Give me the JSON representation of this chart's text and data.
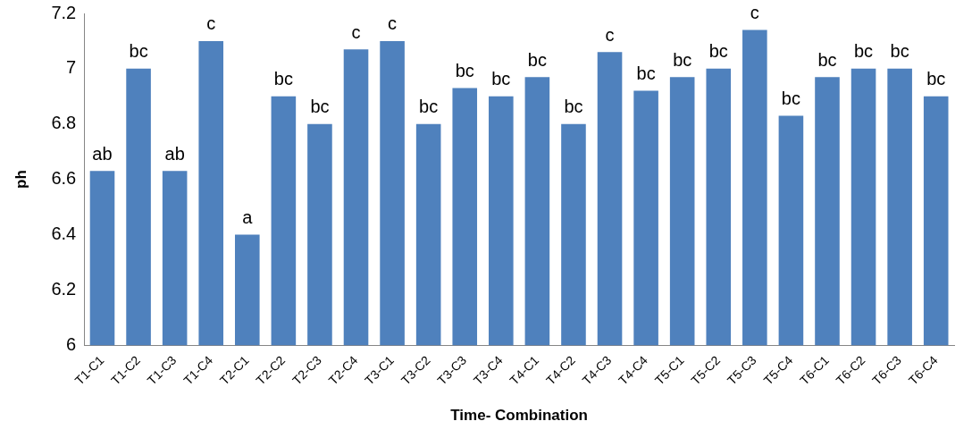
{
  "chart_data": {
    "type": "bar",
    "xlabel": "Time- Combination",
    "ylabel": "ph",
    "categories": [
      "T1-C1",
      "T1-C2",
      "T1-C3",
      "T1-C4",
      "T2-C1",
      "T2-C2",
      "T2-C3",
      "T2-C4",
      "T3-C1",
      "T3-C2",
      "T3-C3",
      "T3-C4",
      "T4-C1",
      "T4-C2",
      "T4-C3",
      "T4-C4",
      "T5-C1",
      "T5-C2",
      "T5-C3",
      "T5-C4",
      "T6-C1",
      "T6-C2",
      "T6-C3",
      "T6-C4"
    ],
    "values": [
      6.63,
      7.0,
      6.63,
      7.1,
      6.4,
      6.9,
      6.8,
      7.07,
      7.1,
      6.8,
      6.93,
      6.9,
      6.97,
      6.8,
      7.06,
      6.92,
      6.97,
      7.0,
      7.14,
      6.83,
      6.97,
      7.0,
      7.0,
      6.9
    ],
    "color": "#4f81bd",
    "ylim": [
      6,
      7.2
    ],
    "yticks": [
      6,
      6.2,
      6.4,
      6.6,
      6.8,
      7,
      7.2
    ],
    "grid": false,
    "legend": false,
    "annotations": [
      {
        "text": "ab",
        "x": "T1-C1",
        "y": 6.63
      },
      {
        "text": "bc",
        "x": "T1-C2",
        "y": 7.0
      },
      {
        "text": "ab",
        "x": "T1-C3",
        "y": 6.63
      },
      {
        "text": "c",
        "x": "T1-C4",
        "y": 7.1
      },
      {
        "text": "a",
        "x": "T2-C1",
        "y": 6.4
      },
      {
        "text": "bc",
        "x": "T2-C2",
        "y": 6.9
      },
      {
        "text": "bc",
        "x": "T2-C3",
        "y": 6.8
      },
      {
        "text": "c",
        "x": "T2-C4",
        "y": 7.07
      },
      {
        "text": "c",
        "x": "T3-C1",
        "y": 7.1
      },
      {
        "text": "bc",
        "x": "T3-C2",
        "y": 6.8
      },
      {
        "text": "bc",
        "x": "T3-C3",
        "y": 6.93
      },
      {
        "text": "bc",
        "x": "T3-C4",
        "y": 6.9
      },
      {
        "text": "bc",
        "x": "T4-C1",
        "y": 6.97
      },
      {
        "text": "bc",
        "x": "T4-C2",
        "y": 6.8
      },
      {
        "text": "c",
        "x": "T4-C3",
        "y": 7.06
      },
      {
        "text": "bc",
        "x": "T4-C4",
        "y": 6.92
      },
      {
        "text": "bc",
        "x": "T5-C1",
        "y": 6.97
      },
      {
        "text": "bc",
        "x": "T5-C2",
        "y": 7.0
      },
      {
        "text": "c",
        "x": "T5-C3",
        "y": 7.14
      },
      {
        "text": "bc",
        "x": "T5-C4",
        "y": 6.83
      },
      {
        "text": "bc",
        "x": "T6-C1",
        "y": 6.97
      },
      {
        "text": "bc",
        "x": "T6-C2",
        "y": 7.0
      },
      {
        "text": "bc",
        "x": "T6-C3",
        "y": 7.0
      },
      {
        "text": "bc",
        "x": "T6-C4",
        "y": 6.9
      }
    ]
  }
}
